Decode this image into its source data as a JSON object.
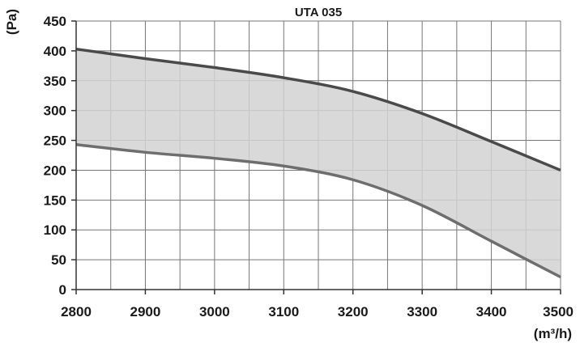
{
  "chart_data": {
    "type": "area",
    "title": "UTA 035",
    "ylabel": "(Pa)",
    "xlabel": "(m³/h)",
    "xlim": [
      2800,
      3500
    ],
    "ylim": [
      0,
      450
    ],
    "x_ticks": [
      2800,
      2900,
      3000,
      3100,
      3200,
      3300,
      3400,
      3500
    ],
    "y_ticks": [
      0,
      50,
      100,
      150,
      200,
      250,
      300,
      350,
      400,
      450
    ],
    "x_minor_step": 50,
    "grid": true,
    "band": "filled region between upper and lower curves",
    "series": [
      {
        "x": [
          2800,
          2900,
          3000,
          3100,
          3200,
          3300,
          3400,
          3500
        ],
        "values": [
          403,
          387,
          372,
          355,
          332,
          295,
          248,
          200
        ]
      },
      {
        "x": [
          2800,
          2900,
          3000,
          3100,
          3200,
          3300,
          3400,
          3500
        ],
        "values": [
          243,
          230,
          220,
          207,
          184,
          141,
          81,
          21
        ]
      }
    ],
    "colors": {
      "upper_line": "#4a4a4a",
      "lower_line": "#6e6e6e",
      "fill": "#d2d2d2",
      "grid": "#777777"
    }
  }
}
